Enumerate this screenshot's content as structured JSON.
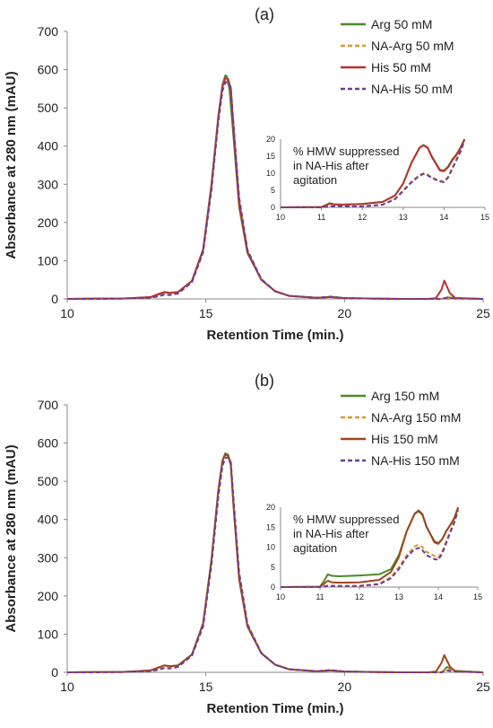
{
  "chart_data": [
    {
      "panel_label": "(a)",
      "type": "line",
      "xlabel": "Retention Time (min.)",
      "ylabel": "Absorbance at 280 nm (mAU)",
      "xlim": [
        10,
        25
      ],
      "ylim": [
        0,
        700
      ],
      "xticks": [
        10,
        15,
        20,
        25
      ],
      "yticks": [
        0,
        100,
        200,
        300,
        400,
        500,
        600,
        700
      ],
      "grid": false,
      "legend_position": "top-right",
      "series": [
        {
          "name": "Arg 50 mM",
          "color": "#4a8a2a",
          "dash": "solid",
          "x": [
            10,
            11,
            12,
            13,
            13.3,
            13.5,
            13.7,
            14,
            14.5,
            14.9,
            15.2,
            15.45,
            15.6,
            15.7,
            15.75,
            15.85,
            16.0,
            16.2,
            16.5,
            17,
            17.5,
            18,
            19,
            19.5,
            20,
            21,
            22,
            23,
            23.5,
            23.7,
            24,
            25
          ],
          "y": [
            0,
            1,
            1,
            4,
            12,
            17,
            16,
            18,
            48,
            130,
            300,
            480,
            560,
            585,
            583,
            548,
            420,
            240,
            120,
            50,
            20,
            8,
            3,
            5,
            2,
            1,
            0,
            0,
            0,
            4,
            2,
            0
          ]
        },
        {
          "name": "NA-Arg 50 mM",
          "color": "#e0962a",
          "dash": "dashed",
          "x": [
            10,
            11,
            12,
            13,
            13.3,
            13.5,
            13.7,
            14,
            14.5,
            14.9,
            15.2,
            15.45,
            15.6,
            15.7,
            15.8,
            15.9,
            16.0,
            16.2,
            16.5,
            17,
            17.5,
            18,
            19,
            19.5,
            20,
            21,
            22,
            23,
            25
          ],
          "y": [
            0,
            0,
            1,
            3,
            8,
            12,
            11,
            15,
            45,
            125,
            290,
            470,
            550,
            572,
            575,
            555,
            450,
            260,
            125,
            50,
            20,
            8,
            3,
            5,
            2,
            1,
            0,
            0,
            0
          ]
        },
        {
          "name": "His 50 mM",
          "color": "#b8322e",
          "dash": "solid",
          "x": [
            10,
            11,
            12,
            13,
            13.3,
            13.5,
            13.7,
            14,
            14.5,
            14.9,
            15.2,
            15.45,
            15.6,
            15.7,
            15.8,
            15.9,
            16.0,
            16.2,
            16.5,
            17,
            17.5,
            18,
            19,
            19.5,
            20,
            21,
            22,
            23,
            23.3,
            23.5,
            23.6,
            23.8,
            24,
            25
          ],
          "y": [
            0,
            1,
            1,
            5,
            13,
            18,
            16,
            18,
            47,
            128,
            295,
            475,
            555,
            578,
            576,
            550,
            440,
            250,
            122,
            50,
            20,
            8,
            3,
            5,
            2,
            1,
            0,
            0,
            2,
            25,
            48,
            15,
            2,
            0
          ]
        },
        {
          "name": "NA-His 50 mM",
          "color": "#6a3d9a",
          "dash": "dashed",
          "x": [
            10,
            11,
            12,
            13,
            13.3,
            13.5,
            13.7,
            14,
            14.5,
            14.9,
            15.2,
            15.45,
            15.6,
            15.7,
            15.8,
            15.9,
            16.0,
            16.2,
            16.5,
            17,
            17.5,
            18,
            19,
            19.5,
            20,
            21,
            22,
            23,
            23.5,
            23.7,
            24,
            25
          ],
          "y": [
            0,
            0,
            1,
            3,
            7,
            11,
            10,
            14,
            44,
            122,
            285,
            465,
            545,
            566,
            568,
            552,
            455,
            265,
            128,
            52,
            20,
            8,
            3,
            6,
            2,
            1,
            0,
            0,
            0,
            3,
            2,
            0
          ]
        }
      ],
      "inset": {
        "annotation": [
          "% HMW suppressed",
          "in NA-His after",
          "agitation"
        ],
        "xlim": [
          10,
          15
        ],
        "ylim": [
          0,
          20
        ],
        "xticks": [
          10,
          11,
          12,
          13,
          14,
          15
        ],
        "yticks": [
          0,
          5,
          10,
          15,
          20
        ],
        "series": [
          {
            "name": "Arg 50 mM",
            "x": [
              10,
              11,
              11.1,
              11.2,
              11.3,
              11.5,
              12,
              12.5,
              12.8,
              13,
              13.2,
              13.4,
              13.5,
              13.6,
              13.7,
              13.9,
              14,
              14.1,
              14.2,
              14.3,
              14.4,
              14.5
            ],
            "y": [
              0,
              0.1,
              0.6,
              1.2,
              0.9,
              0.8,
              1.0,
              1.6,
              3.5,
              7,
              13,
              17.5,
              18.3,
              17.5,
              15,
              11,
              10.8,
              12,
              14,
              15.5,
              17.5,
              20
            ]
          },
          {
            "name": "NA-Arg 50 mM",
            "x": [
              10,
              11,
              11.2,
              11.5,
              12,
              12.5,
              12.8,
              13,
              13.2,
              13.4,
              13.5,
              13.6,
              13.7,
              13.9,
              14,
              14.1,
              14.2,
              14.3,
              14.4,
              14.5
            ],
            "y": [
              0,
              0,
              0.4,
              0.3,
              0.3,
              0.8,
              2.5,
              5,
              7.5,
              9.5,
              10,
              9.6,
              8.8,
              7.8,
              7.6,
              9,
              11.5,
              14,
              16.5,
              19.8
            ]
          },
          {
            "name": "His 50 mM",
            "x": [
              10,
              11,
              11.1,
              11.2,
              11.3,
              11.5,
              12,
              12.5,
              12.8,
              13,
              13.2,
              13.4,
              13.5,
              13.6,
              13.7,
              13.9,
              14,
              14.1,
              14.2,
              14.3,
              14.4,
              14.5
            ],
            "y": [
              0,
              0.1,
              0.6,
              1.1,
              0.9,
              0.8,
              1.0,
              1.6,
              3.5,
              7,
              13,
              17.4,
              18.2,
              17.4,
              14.8,
              10.8,
              10.6,
              11.8,
              13.8,
              15.3,
              17.3,
              19.9
            ]
          },
          {
            "name": "NA-His 50 mM",
            "x": [
              10,
              11,
              11.2,
              11.5,
              12,
              12.5,
              12.8,
              13,
              13.2,
              13.4,
              13.5,
              13.6,
              13.7,
              13.9,
              14,
              14.1,
              14.2,
              14.3,
              14.4,
              14.5
            ],
            "y": [
              0,
              0,
              0.3,
              0.3,
              0.3,
              0.8,
              2.4,
              4.8,
              7.3,
              9.3,
              9.8,
              9.4,
              8.6,
              7.6,
              7.4,
              8.8,
              11.2,
              13.8,
              16.2,
              19.5
            ]
          }
        ]
      }
    },
    {
      "panel_label": "(b)",
      "type": "line",
      "xlabel": "Retention Time (min.)",
      "ylabel": "Absorbance at 280 nm (mAU)",
      "xlim": [
        10,
        25
      ],
      "ylim": [
        0,
        700
      ],
      "xticks": [
        10,
        15,
        20,
        25
      ],
      "yticks": [
        0,
        100,
        200,
        300,
        400,
        500,
        600,
        700
      ],
      "grid": false,
      "legend_position": "top-right",
      "series": [
        {
          "name": "Arg 150 mM",
          "color": "#4a8a2a",
          "dash": "solid",
          "x": [
            10,
            11,
            12,
            13,
            13.3,
            13.5,
            13.7,
            14,
            14.5,
            14.9,
            15.2,
            15.45,
            15.6,
            15.7,
            15.8,
            15.9,
            16.0,
            16.2,
            16.5,
            17,
            17.5,
            18,
            19,
            19.5,
            20,
            21,
            22,
            23,
            23.5,
            23.7,
            24,
            25
          ],
          "y": [
            0,
            1,
            1,
            5,
            13,
            18,
            16,
            18,
            47,
            128,
            295,
            478,
            555,
            573,
            570,
            545,
            435,
            245,
            120,
            50,
            20,
            8,
            3,
            5,
            2,
            1,
            0,
            0,
            0,
            14,
            4,
            0
          ]
        },
        {
          "name": "NA-Arg 150 mM",
          "color": "#e0962a",
          "dash": "dashed",
          "x": [
            10,
            11,
            12,
            13,
            13.3,
            13.5,
            13.7,
            14,
            14.5,
            14.9,
            15.2,
            15.45,
            15.6,
            15.7,
            15.8,
            15.9,
            16.0,
            16.2,
            16.5,
            17,
            17.5,
            18,
            19,
            19.5,
            20,
            21,
            22,
            23,
            23.5,
            23.7,
            24,
            25
          ],
          "y": [
            0,
            0,
            1,
            3,
            8,
            12,
            11,
            15,
            45,
            125,
            288,
            468,
            548,
            568,
            569,
            552,
            445,
            255,
            124,
            50,
            20,
            8,
            3,
            5,
            2,
            1,
            0,
            0,
            0,
            10,
            3,
            0
          ]
        },
        {
          "name": "His 150 mM",
          "color": "#a0451e",
          "dash": "solid",
          "x": [
            10,
            11,
            12,
            13,
            13.3,
            13.5,
            13.7,
            14,
            14.5,
            14.9,
            15.2,
            15.45,
            15.6,
            15.7,
            15.8,
            15.9,
            16.0,
            16.2,
            16.5,
            17,
            17.5,
            18,
            19,
            19.5,
            20,
            21,
            22,
            23,
            23.3,
            23.5,
            23.6,
            23.8,
            24,
            25
          ],
          "y": [
            0,
            1,
            1,
            5,
            13,
            18,
            16,
            18,
            47,
            128,
            293,
            475,
            553,
            570,
            567,
            542,
            432,
            243,
            120,
            50,
            20,
            8,
            3,
            5,
            2,
            1,
            0,
            0,
            2,
            25,
            45,
            15,
            2,
            0
          ]
        },
        {
          "name": "NA-His 150 mM",
          "color": "#6a3d9a",
          "dash": "dashed",
          "x": [
            10,
            11,
            12,
            13,
            13.3,
            13.5,
            13.7,
            14,
            14.5,
            14.9,
            15.2,
            15.45,
            15.6,
            15.7,
            15.8,
            15.9,
            16.0,
            16.2,
            16.5,
            17,
            17.5,
            18,
            19,
            19.5,
            20,
            21,
            22,
            23,
            23.5,
            23.7,
            24,
            25
          ],
          "y": [
            0,
            0,
            1,
            3,
            7,
            11,
            10,
            14,
            44,
            120,
            280,
            460,
            540,
            560,
            563,
            550,
            452,
            262,
            126,
            51,
            20,
            8,
            3,
            6,
            2,
            1,
            0,
            0,
            0,
            5,
            2,
            0
          ]
        }
      ],
      "inset": {
        "annotation": [
          "% HMW suppressed",
          "in NA-His after",
          "agitation"
        ],
        "xlim": [
          10,
          15
        ],
        "ylim": [
          0,
          20
        ],
        "xticks": [
          10,
          11,
          12,
          13,
          14,
          15
        ],
        "yticks": [
          0,
          5,
          10,
          15,
          20
        ],
        "series": [
          {
            "name": "Arg 150 mM",
            "x": [
              10,
              11,
              11.1,
              11.2,
              11.3,
              11.5,
              12,
              12.5,
              12.8,
              13,
              13.2,
              13.4,
              13.5,
              13.6,
              13.7,
              13.9,
              14,
              14.1,
              14.2,
              14.3,
              14.4,
              14.5
            ],
            "y": [
              0,
              0.1,
              1.5,
              3.2,
              2.8,
              2.7,
              2.9,
              3.2,
              4.5,
              8,
              14,
              18.3,
              19,
              18,
              15,
              11.5,
              11,
              12,
              14,
              15.5,
              17,
              20
            ]
          },
          {
            "name": "NA-Arg 150 mM",
            "x": [
              10,
              11,
              11.2,
              11.5,
              12,
              12.5,
              12.8,
              13,
              13.2,
              13.4,
              13.5,
              13.6,
              13.7,
              13.9,
              14,
              14.1,
              14.2,
              14.3,
              14.4,
              14.5
            ],
            "y": [
              0,
              0,
              0.4,
              0.3,
              0.3,
              0.8,
              2.5,
              5,
              8,
              10.2,
              10.6,
              10,
              8.8,
              7.8,
              7.4,
              9,
              11.5,
              14,
              16.5,
              19.5
            ]
          },
          {
            "name": "His 150 mM",
            "x": [
              10,
              11,
              11.1,
              11.2,
              11.3,
              11.5,
              12,
              12.5,
              12.8,
              13,
              13.2,
              13.4,
              13.5,
              13.6,
              13.7,
              13.9,
              14,
              14.1,
              14.2,
              14.3,
              14.4,
              14.5
            ],
            "y": [
              0,
              0.1,
              0.8,
              1.6,
              1.2,
              1.1,
              1.2,
              1.8,
              3.8,
              7.5,
              14,
              18.4,
              19.2,
              18.2,
              15.2,
              11.2,
              10.8,
              12,
              14,
              15.5,
              17.2,
              19.8
            ]
          },
          {
            "name": "NA-His 150 mM",
            "x": [
              10,
              11,
              11.2,
              11.5,
              12,
              12.5,
              12.8,
              13,
              13.2,
              13.4,
              13.5,
              13.6,
              13.7,
              13.9,
              14,
              14.1,
              14.2,
              14.3,
              14.4,
              14.5
            ],
            "y": [
              0,
              0,
              0.3,
              0.3,
              0.3,
              0.7,
              2.2,
              4.5,
              7.5,
              9.5,
              9.8,
              9.2,
              8,
              7,
              6.8,
              8.4,
              11,
              13.6,
              16,
              19.2
            ]
          }
        ]
      }
    }
  ]
}
